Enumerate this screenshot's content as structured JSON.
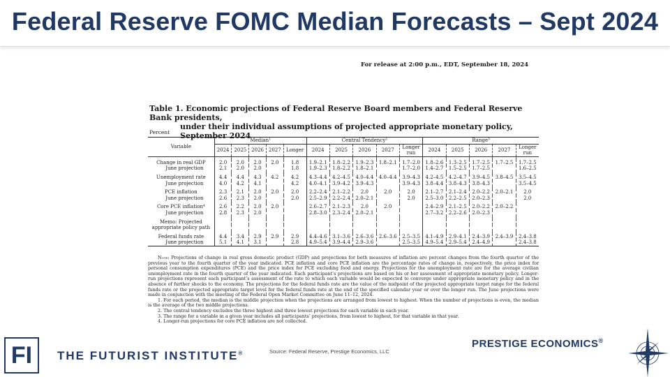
{
  "title": "Federal Reserve FOMC Median Forecasts – Sept 2024",
  "release": "For release at 2:00 p.m., EDT, September 18, 2024",
  "caption_line1": "Table 1. Economic projections of Federal Reserve Board members and Federal Reserve Bank presidents,",
  "caption_line2": "under their individual assumptions of projected appropriate monetary policy, September 2024",
  "percent": "Percent",
  "headers": {
    "variable": "Variable",
    "median": "Median¹",
    "central": "Central Tendency²",
    "range": "Range³",
    "years": [
      "2024",
      "2025",
      "2026",
      "2027"
    ],
    "longer1": "Longer",
    "longer2": "run"
  },
  "rows": [
    {
      "label": "Change in real GDP",
      "sub": false,
      "c": [
        "2.0",
        "2.0",
        "2.0",
        "2.0",
        "1.8",
        "1.9–2.1",
        "1.8–2.2",
        "1.9–2.3",
        "1.8–2.1",
        "1.7–2.0",
        "1.8–2.6",
        "1.3–2.5",
        "1.7–2.5",
        "1.7–2.5",
        "1.7–2.5"
      ]
    },
    {
      "label": "June projection",
      "sub": true,
      "c": [
        "2.1",
        "2.0",
        "2.0",
        "",
        "1.8",
        "1.9–2.3",
        "1.8–2.2",
        "1.8–2.1",
        "",
        "1.7–2.0",
        "1.4–2.7",
        "1.5–2.5",
        "1.7–2.5",
        "",
        "1.6–2.5"
      ]
    },
    {
      "label": "Unemployment rate",
      "sub": false,
      "c": [
        "4.4",
        "4.4",
        "4.3",
        "4.2",
        "4.2",
        "4.3–4.4",
        "4.2–4.5",
        "4.0–4.4",
        "4.0–4.4",
        "3.9–4.3",
        "4.2–4.5",
        "4.2–4.7",
        "3.9–4.5",
        "3.8–4.5",
        "3.5–4.5"
      ]
    },
    {
      "label": "June projection",
      "sub": true,
      "c": [
        "4.0",
        "4.2",
        "4.1",
        "",
        "4.2",
        "4.0–4.1",
        "3.9–4.2",
        "3.9–4.3",
        "",
        "3.9–4.3",
        "3.8–4.4",
        "3.8–4.3",
        "3.8–4.3",
        "",
        "3.5–4.5"
      ]
    },
    {
      "label": "PCE inflation",
      "sub": false,
      "c": [
        "2.3",
        "2.1",
        "2.0",
        "2.0",
        "2.0",
        "2.2–2.4",
        "2.1–2.2",
        "2.0",
        "2.0",
        "2.0",
        "2.1–2.7",
        "2.1–2.4",
        "2.0–2.2",
        "2.0–2.1",
        "2.0"
      ]
    },
    {
      "label": "June projection",
      "sub": true,
      "c": [
        "2.6",
        "2.3",
        "2.0",
        "",
        "2.0",
        "2.5–2.9",
        "2.2–2.4",
        "2.0–2.1",
        "",
        "2.0",
        "2.5–3.0",
        "2.2–2.5",
        "2.0–2.3",
        "",
        "2.0"
      ]
    },
    {
      "label": "Core PCE inflation⁴",
      "sub": false,
      "c": [
        "2.6",
        "2.2",
        "2.0",
        "2.0",
        "",
        "2.6–2.7",
        "2.1–2.3",
        "2.0",
        "2.0",
        "",
        "2.4–2.9",
        "2.1–2.5",
        "2.0–2.2",
        "2.0–2.2",
        ""
      ]
    },
    {
      "label": "June projection",
      "sub": true,
      "c": [
        "2.8",
        "2.3",
        "2.0",
        "",
        "",
        "2.8–3.0",
        "2.3–2.4",
        "2.0–2.1",
        "",
        "",
        "2.7–3.2",
        "2.2–2.6",
        "2.0–2.3",
        "",
        ""
      ]
    }
  ],
  "memo1": "Memo: Projected",
  "memo2": "appropriate policy path",
  "ff_rows": [
    {
      "label": "Federal funds rate",
      "sub": false,
      "c": [
        "4.4",
        "3.4",
        "2.9",
        "2.9",
        "2.9",
        "4.4–4.6",
        "3.1–3.6",
        "2.6–3.6",
        "2.6–3.6",
        "2.5–3.5",
        "4.1–4.9",
        "2.9–4.1",
        "2.4–3.9",
        "2.4–3.9",
        "2.4–3.8"
      ]
    },
    {
      "label": "June projection",
      "sub": true,
      "c": [
        "5.1",
        "4.1",
        "3.1",
        "",
        "2.8",
        "4.9–5.4",
        "3.9–4.4",
        "2.9–3.6",
        "",
        "2.5–3.5",
        "4.9–5.4",
        "2.9–5.4",
        "2.4–4.9",
        "",
        "2.4–3.8"
      ]
    }
  ],
  "note_label": "Note:",
  "note_text": "Projections of change in real gross domestic product (GDP) and projections for both measures of inflation are percent changes from the fourth quarter of the previous year to the fourth quarter of the year indicated. PCE inflation and core PCE inflation are the percentage rates of change in, respectively, the price index for personal consumption expenditures (PCE) and the price index for PCE excluding food and energy. Projections for the unemployment rate are for the average civilian unemployment rate in the fourth quarter of the year indicated. Each participant’s projections are based on his or her assessment of appropriate monetary policy. Longer-run projections represent each participant’s assessment of the rate to which each variable would be expected to converge under appropriate monetary policy and in the absence of further shocks to the economy. The projections for the federal funds rate are the value of the midpoint of the projected appropriate target range for the federal funds rate or the projected appropriate target level for the federal funds rate at the end of the specified calendar year or over the longer run. The June projections were made in conjunction with the meeting of the Federal Open Market Committee on June 11–12, 2024.",
  "footnotes": [
    "1. For each period, the median is the middle projection when the projections are arranged from lowest to highest. When the number of projections is even, the median is the average of the two middle projections.",
    "2. The central tendency excludes the three highest and three lowest projections for each variable in each year.",
    "3. The range for a variable in a given year includes all participants’ projections, from lowest to highest, for that variable in that year.",
    "4. Longer-run projections for core PCE inflation are not collected."
  ],
  "fi_logo": "FI",
  "futurist": "THE FUTURIST INSTITUTE",
  "reg": "®",
  "source": "Source: Federal Reserve, Prestige Economics, LLC",
  "prestige": "PRESTIGE ECONOMICS",
  "colors": {
    "brand": "#1f3864"
  }
}
